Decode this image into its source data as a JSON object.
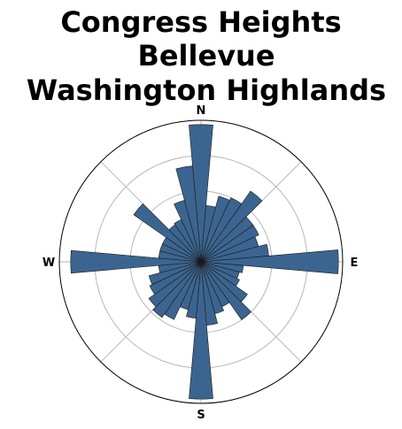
{
  "chart_data": {
    "type": "polar-bar",
    "title_lines": [
      "Congress Heights",
      "Bellevue",
      "Washington Highlands"
    ],
    "directions": {
      "n": "N",
      "e": "E",
      "s": "S",
      "w": "W"
    },
    "bin_width_deg": 10,
    "rmax": 1.0,
    "radial_gridlines": [
      0.25,
      0.5,
      0.75
    ],
    "angular_gridlines_deg": [
      0,
      45,
      90,
      135,
      180,
      225,
      270,
      315
    ],
    "grid": true,
    "bar_color": "#3b6590",
    "edge_color": "#1a1a1a",
    "bins": [
      {
        "bearing": 0,
        "value": 0.97
      },
      {
        "bearing": 10,
        "value": 0.4
      },
      {
        "bearing": 20,
        "value": 0.48
      },
      {
        "bearing": 30,
        "value": 0.5
      },
      {
        "bearing": 40,
        "value": 0.61
      },
      {
        "bearing": 50,
        "value": 0.45
      },
      {
        "bearing": 60,
        "value": 0.45
      },
      {
        "bearing": 70,
        "value": 0.42
      },
      {
        "bearing": 80,
        "value": 0.48
      },
      {
        "bearing": 90,
        "value": 0.97
      },
      {
        "bearing": 100,
        "value": 0.3
      },
      {
        "bearing": 110,
        "value": 0.28
      },
      {
        "bearing": 120,
        "value": 0.3
      },
      {
        "bearing": 130,
        "value": 0.4
      },
      {
        "bearing": 140,
        "value": 0.5
      },
      {
        "bearing": 150,
        "value": 0.35
      },
      {
        "bearing": 160,
        "value": 0.38
      },
      {
        "bearing": 170,
        "value": 0.45
      },
      {
        "bearing": 180,
        "value": 0.97
      },
      {
        "bearing": 190,
        "value": 0.4
      },
      {
        "bearing": 200,
        "value": 0.35
      },
      {
        "bearing": 210,
        "value": 0.45
      },
      {
        "bearing": 220,
        "value": 0.48
      },
      {
        "bearing": 230,
        "value": 0.45
      },
      {
        "bearing": 240,
        "value": 0.4
      },
      {
        "bearing": 250,
        "value": 0.38
      },
      {
        "bearing": 260,
        "value": 0.3
      },
      {
        "bearing": 270,
        "value": 0.92
      },
      {
        "bearing": 280,
        "value": 0.3
      },
      {
        "bearing": 290,
        "value": 0.3
      },
      {
        "bearing": 300,
        "value": 0.3
      },
      {
        "bearing": 310,
        "value": 0.58
      },
      {
        "bearing": 320,
        "value": 0.32
      },
      {
        "bearing": 330,
        "value": 0.33
      },
      {
        "bearing": 340,
        "value": 0.45
      },
      {
        "bearing": 350,
        "value": 0.68
      }
    ]
  }
}
